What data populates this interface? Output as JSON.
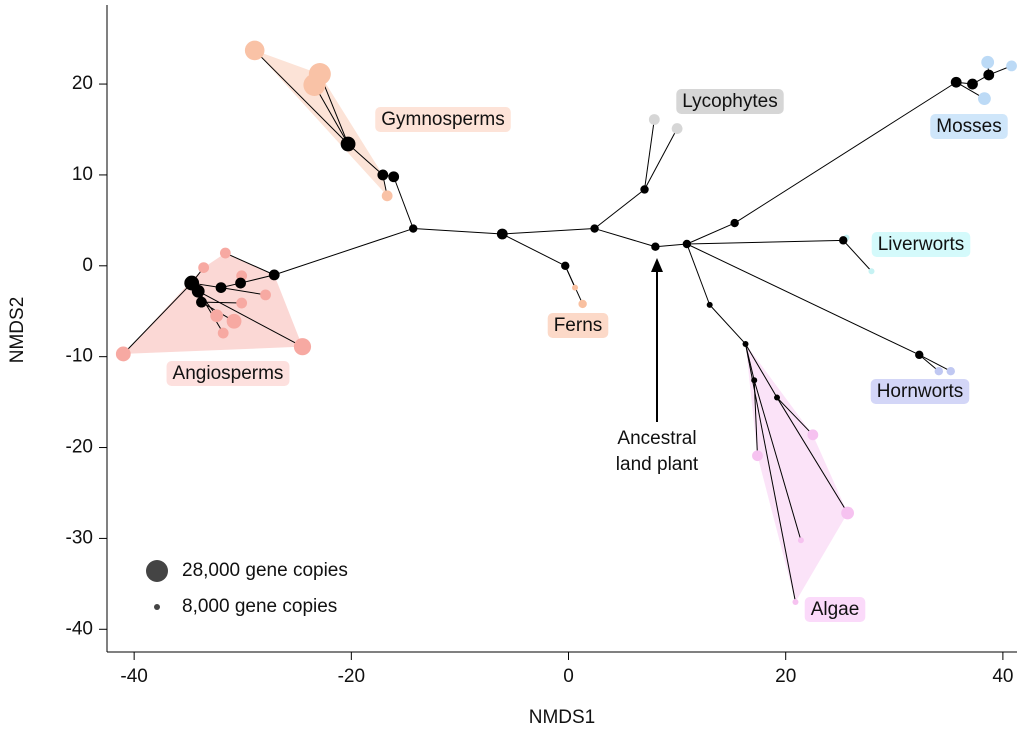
{
  "chart_data": {
    "type": "scatter",
    "xlabel": "NMDS1",
    "ylabel": "NMDS2",
    "xlim": [
      -42.5,
      41.3
    ],
    "ylim": [
      -42.5,
      28.7
    ],
    "xticks": [
      -40,
      -20,
      0,
      20,
      40
    ],
    "yticks": [
      20,
      10,
      0,
      -10,
      -20,
      -30,
      -40
    ],
    "size_legend": [
      {
        "value": 28000,
        "label": "28,000 gene copies"
      },
      {
        "value": 8000,
        "label": "8,000 gene copies"
      }
    ],
    "annotation": [
      "Ancestral",
      "land plant"
    ],
    "node_color": "#000000",
    "nodes": {
      "x": [
        8.0,
        2.4,
        -6.1,
        -14.3,
        -27.1,
        -16.1,
        -17.1,
        -20.3,
        7.0,
        -0.3,
        10.9,
        15.3,
        35.7,
        37.2,
        38.7,
        25.3,
        32.3,
        13.0,
        16.3,
        17.1,
        19.2,
        -30.2,
        -32.0,
        -34.7,
        -34.1,
        -33.8
      ],
      "y": [
        2.1,
        4.1,
        3.5,
        4.1,
        -1.0,
        9.8,
        10.0,
        13.4,
        8.4,
        0.0,
        2.4,
        4.7,
        20.2,
        20.0,
        21.0,
        2.8,
        -9.8,
        -4.3,
        -8.6,
        -12.6,
        -14.5,
        -1.9,
        -2.4,
        -1.9,
        -2.8,
        -4.0
      ],
      "size": [
        11000,
        11000,
        14000,
        11000,
        14000,
        14000,
        14000,
        19000,
        11000,
        11000,
        11000,
        11000,
        14000,
        14000,
        14000,
        11000,
        11000,
        8000,
        8000,
        8000,
        8000,
        14000,
        14000,
        19000,
        16500,
        14000
      ],
      "parent": [
        null,
        0,
        1,
        2,
        3,
        3,
        5,
        6,
        1,
        2,
        0,
        10,
        11,
        12,
        13,
        10,
        10,
        10,
        17,
        18,
        18,
        4,
        21,
        22,
        23,
        24
      ]
    },
    "series": [
      {
        "name": "Gymnosperms",
        "color": "#f9c2a6",
        "label_color": "#fde3d8",
        "hull": true,
        "x": [
          -28.9,
          -22.9,
          -23.4,
          -16.7
        ],
        "y": [
          23.7,
          21.1,
          19.9,
          7.7
        ],
        "size": [
          25000,
          28000,
          28000,
          14000
        ],
        "parent": [
          7,
          7,
          7,
          6
        ]
      },
      {
        "name": "Angiosperms",
        "color": "#f7a9a2",
        "label_color": "#fde0de",
        "hull": true,
        "x": [
          -41.0,
          -24.5,
          -31.6,
          -33.6,
          -30.1,
          -27.9,
          -30.1,
          -32.4,
          -30.8,
          -31.8
        ],
        "y": [
          -9.7,
          -8.9,
          1.4,
          -0.2,
          -1.1,
          -3.2,
          -4.1,
          -5.5,
          -6.1,
          -7.4
        ],
        "size": [
          19000,
          22000,
          14000,
          14000,
          14000,
          14000,
          14000,
          16500,
          19000,
          14000
        ],
        "parent": [
          23,
          24,
          4,
          23,
          21,
          22,
          25,
          24,
          25,
          24
        ]
      },
      {
        "name": "Ferns",
        "color": "#f9c0a0",
        "label_color": "#fcd9c8",
        "hull": false,
        "x": [
          0.6,
          1.3
        ],
        "y": [
          -2.4,
          -4.2
        ],
        "size": [
          8000,
          11000
        ],
        "parent": [
          9,
          9
        ]
      },
      {
        "name": "Lycophytes",
        "color": "#d6d6d6",
        "label_color": "#d6d6d6",
        "hull": false,
        "x": [
          7.9,
          10.0
        ],
        "y": [
          16.1,
          15.1
        ],
        "size": [
          14000,
          14000
        ],
        "parent": [
          8,
          8
        ]
      },
      {
        "name": "Mosses",
        "color": "#bcdaf6",
        "label_color": "#cfe6fa",
        "hull": false,
        "x": [
          38.6,
          40.8,
          38.3
        ],
        "y": [
          22.4,
          22.0,
          18.4
        ],
        "size": [
          16500,
          14000,
          16500
        ],
        "parent": [
          14,
          14,
          12
        ]
      },
      {
        "name": "Liverworts",
        "color": "#c6f2f3",
        "label_color": "#d4fafb",
        "hull": false,
        "x": [
          25.6,
          27.9
        ],
        "y": [
          3.1,
          -0.6
        ],
        "size": [
          8000,
          8000
        ],
        "parent": [
          15,
          15
        ]
      },
      {
        "name": "Hornworts",
        "color": "#c0c8f2",
        "label_color": "#d3d6f7",
        "hull": false,
        "x": [
          34.1,
          35.2
        ],
        "y": [
          -11.6,
          -11.6
        ],
        "size": [
          11000,
          11000
        ],
        "parent": [
          16,
          16
        ]
      },
      {
        "name": "Algae",
        "color": "#f6c2f0",
        "label_color": "#fbdafa",
        "hull": true,
        "x": [
          17.4,
          22.5,
          25.7,
          21.4,
          20.9
        ],
        "y": [
          -20.9,
          -18.6,
          -27.2,
          -30.2,
          -37.0
        ],
        "size": [
          14000,
          14000,
          16500,
          8000,
          8000
        ],
        "parent": [
          19,
          20,
          20,
          19,
          18
        ]
      }
    ]
  }
}
